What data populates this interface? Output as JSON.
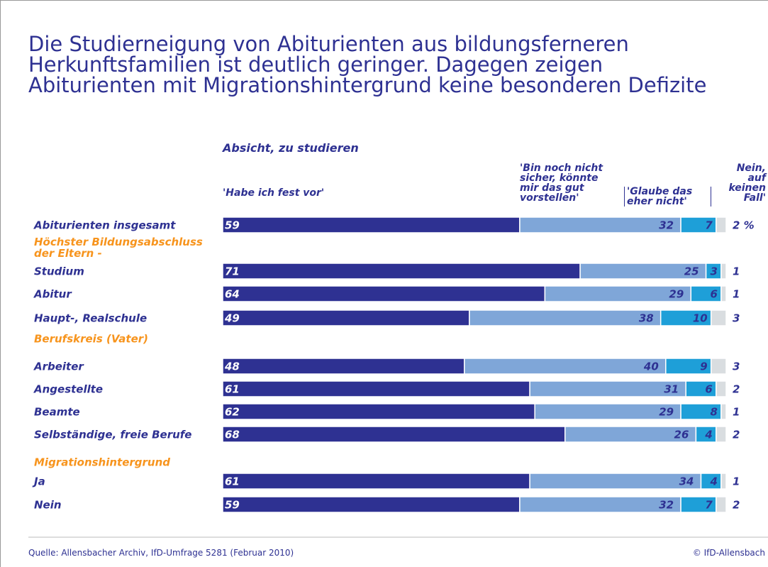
{
  "chart_data": {
    "type": "stacked-bar-horizontal",
    "title": "Die Studierneigung von Abiturienten aus bildungsferneren Herkunftsfamilien ist deutlich geringer. Dagegen zeigen Abiturienten mit Migrationshintergrund keine besonderen Defizite",
    "subtitle": "Absicht, zu studieren",
    "categories": [
      "Abiturienten insgesamt",
      "Studium",
      "Abitur",
      "Haupt-, Realschule",
      "Arbeiter",
      "Angestellte",
      "Beamte",
      "Selbständige, freie Berufe",
      "Ja",
      "Nein"
    ],
    "group_labels": [
      "Höchster Bildungsabschluss der Eltern -",
      "Berufskreis (Vater)",
      "Migrationshintergrund"
    ],
    "series": [
      {
        "name": "'Habe ich fest vor'",
        "color": "#2e3192",
        "values": [
          59,
          71,
          64,
          49,
          48,
          61,
          62,
          68,
          61,
          59
        ]
      },
      {
        "name": "'Bin noch nicht sicher, könnte mir das gut vorstellen'",
        "color": "#7fa6d8",
        "values": [
          32,
          25,
          29,
          38,
          40,
          31,
          29,
          26,
          34,
          32
        ]
      },
      {
        "name": "'Glaube das eher nicht'",
        "color": "#1e9fd8",
        "values": [
          7,
          3,
          6,
          10,
          9,
          6,
          8,
          4,
          4,
          7
        ]
      },
      {
        "name": "Nein, auf keinen Fall'",
        "color": "#d9dde0",
        "values": [
          2,
          1,
          1,
          3,
          3,
          2,
          1,
          2,
          1,
          2
        ],
        "value_labels": [
          "2 %",
          "1",
          "1",
          "3",
          "3",
          "2",
          "1",
          "2",
          "1",
          "2"
        ]
      }
    ],
    "xlim": [
      0,
      100
    ],
    "source": "Quelle: Allensbacher Archiv, IfD-Umfrage 5281 (Februar 2010)",
    "copyright": "© IfD-Allensbach"
  }
}
